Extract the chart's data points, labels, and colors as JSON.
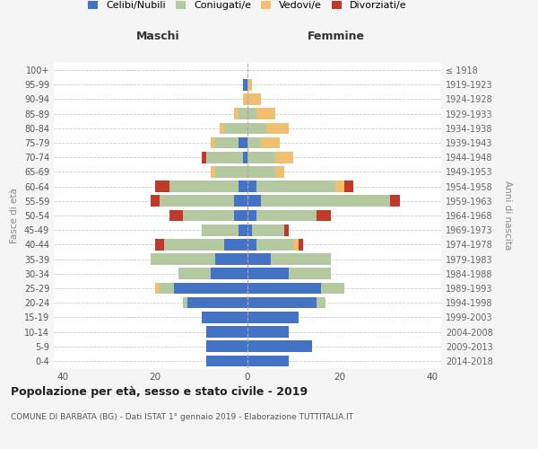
{
  "age_groups": [
    "0-4",
    "5-9",
    "10-14",
    "15-19",
    "20-24",
    "25-29",
    "30-34",
    "35-39",
    "40-44",
    "45-49",
    "50-54",
    "55-59",
    "60-64",
    "65-69",
    "70-74",
    "75-79",
    "80-84",
    "85-89",
    "90-94",
    "95-99",
    "100+"
  ],
  "birth_years": [
    "2014-2018",
    "2009-2013",
    "2004-2008",
    "1999-2003",
    "1994-1998",
    "1989-1993",
    "1984-1988",
    "1979-1983",
    "1974-1978",
    "1969-1973",
    "1964-1968",
    "1959-1963",
    "1954-1958",
    "1949-1953",
    "1944-1948",
    "1939-1943",
    "1934-1938",
    "1929-1933",
    "1924-1928",
    "1919-1923",
    "≤ 1918"
  ],
  "male": {
    "celibi": [
      9,
      9,
      9,
      10,
      13,
      16,
      8,
      7,
      5,
      2,
      3,
      3,
      2,
      0,
      1,
      2,
      0,
      0,
      0,
      1,
      0
    ],
    "coniugati": [
      0,
      0,
      0,
      0,
      1,
      3,
      7,
      14,
      13,
      8,
      11,
      16,
      15,
      7,
      8,
      5,
      5,
      2,
      0,
      0,
      0
    ],
    "vedovi": [
      0,
      0,
      0,
      0,
      0,
      1,
      0,
      0,
      0,
      0,
      0,
      0,
      0,
      1,
      0,
      1,
      1,
      1,
      1,
      0,
      0
    ],
    "divorziati": [
      0,
      0,
      0,
      0,
      0,
      0,
      0,
      0,
      2,
      0,
      3,
      2,
      3,
      0,
      1,
      0,
      0,
      0,
      0,
      0,
      0
    ]
  },
  "female": {
    "nubili": [
      9,
      14,
      9,
      11,
      15,
      16,
      9,
      5,
      2,
      1,
      2,
      3,
      2,
      0,
      0,
      0,
      0,
      0,
      0,
      0,
      0
    ],
    "coniugate": [
      0,
      0,
      0,
      0,
      2,
      5,
      9,
      13,
      8,
      7,
      13,
      28,
      17,
      6,
      6,
      3,
      4,
      2,
      0,
      0,
      0
    ],
    "vedove": [
      0,
      0,
      0,
      0,
      0,
      0,
      0,
      0,
      1,
      0,
      0,
      0,
      2,
      2,
      4,
      4,
      5,
      4,
      3,
      1,
      0
    ],
    "divorziate": [
      0,
      0,
      0,
      0,
      0,
      0,
      0,
      0,
      1,
      1,
      3,
      2,
      2,
      0,
      0,
      0,
      0,
      0,
      0,
      0,
      0
    ]
  },
  "colors": {
    "celibi": "#4472c4",
    "coniugati": "#b5c9a0",
    "vedovi": "#f0c070",
    "divorziati": "#c0392b"
  },
  "xlim": 42,
  "title": "Popolazione per età, sesso e stato civile - 2019",
  "subtitle": "COMUNE DI BARBATA (BG) - Dati ISTAT 1° gennaio 2019 - Elaborazione TUTTITALIA.IT",
  "xlabel_left": "Maschi",
  "xlabel_right": "Femmine",
  "ylabel_left": "Fasce di età",
  "ylabel_right": "Anni di nascita",
  "legend_labels": [
    "Celibi/Nubili",
    "Coniugati/e",
    "Vedovi/e",
    "Divorziati/e"
  ],
  "bg_color": "#f5f5f5",
  "plot_bg": "#ffffff"
}
